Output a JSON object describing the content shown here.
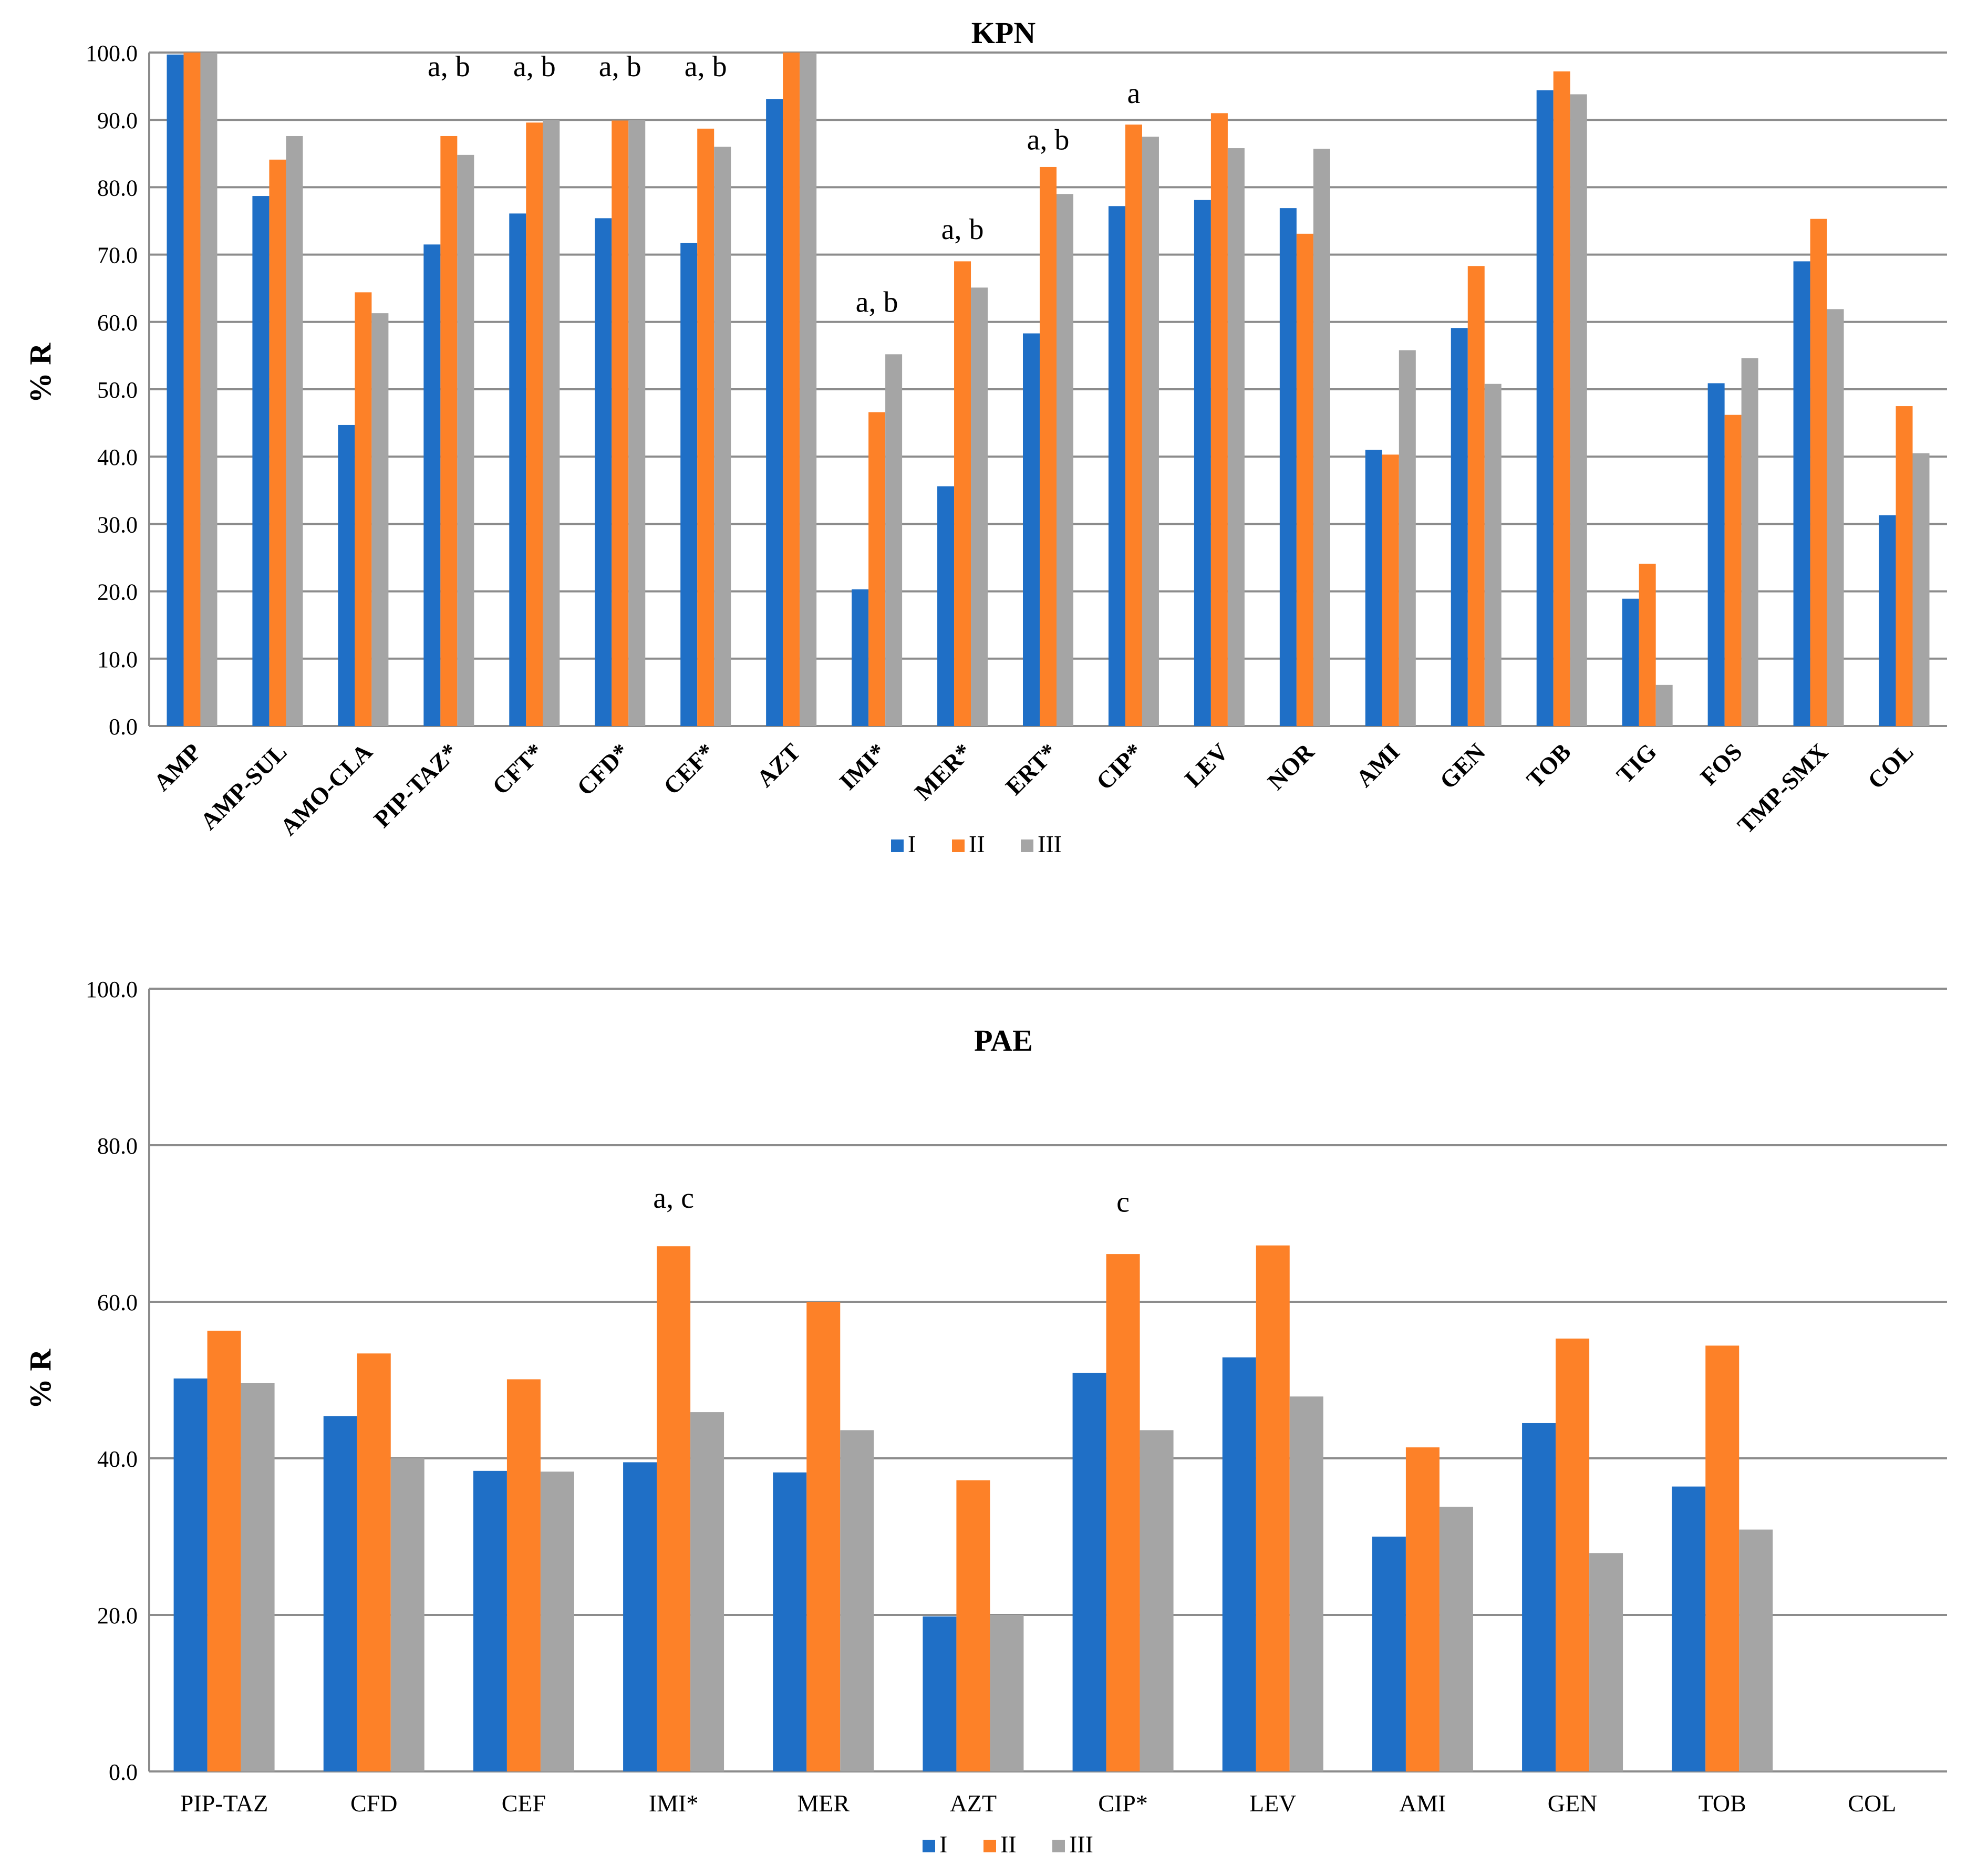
{
  "chart_data": [
    {
      "type": "bar",
      "title": "KPN",
      "xlabel": "",
      "ylabel": "% R",
      "ylim": [
        0,
        100
      ],
      "ytick_step": 10,
      "ytick_decimals": 1,
      "grid": true,
      "legend_position": "bottom-center",
      "categories": [
        "AMP",
        "AMP-SUL",
        "AMO-CLA",
        "PIP-TAZ*",
        "CFT*",
        "CFD*",
        "CEF*",
        "AZT",
        "IMI*",
        "MER*",
        "ERT*",
        "CIP*",
        "LEV",
        "NOR",
        "AMI",
        "GEN",
        "TOB",
        "TIG",
        "FOS",
        "TMP-SMX",
        "COL"
      ],
      "series": [
        {
          "name": "I",
          "color": "#1f6fc6",
          "values": [
            99.7,
            78.7,
            44.7,
            71.5,
            76.1,
            75.4,
            71.7,
            93.1,
            20.3,
            35.6,
            58.3,
            77.2,
            78.1,
            76.9,
            41.0,
            59.1,
            94.4,
            18.9,
            50.9,
            69.0,
            31.3
          ]
        },
        {
          "name": "II",
          "color": "#fd8128",
          "values": [
            100.0,
            84.1,
            64.4,
            87.6,
            89.6,
            89.9,
            88.7,
            100.0,
            46.6,
            69.0,
            83.0,
            89.3,
            91.0,
            73.1,
            40.3,
            68.3,
            97.2,
            24.1,
            46.2,
            75.3,
            47.5
          ]
        },
        {
          "name": "III",
          "color": "#a5a5a5",
          "values": [
            100.0,
            87.6,
            61.3,
            84.8,
            90.0,
            90.0,
            86.0,
            100.0,
            55.2,
            65.1,
            79.0,
            87.5,
            85.8,
            85.7,
            55.8,
            50.8,
            93.8,
            6.1,
            54.6,
            61.9,
            40.5
          ]
        }
      ],
      "annotations": [
        {
          "category": "PIP-TAZ*",
          "text": "a, b",
          "y": 96.5
        },
        {
          "category": "CFT*",
          "text": "a, b",
          "y": 96.5
        },
        {
          "category": "CFD*",
          "text": "a, b",
          "y": 96.5
        },
        {
          "category": "CEF*",
          "text": "a, b",
          "y": 96.5
        },
        {
          "category": "IMI*",
          "text": "a, b",
          "y": 61.5
        },
        {
          "category": "MER*",
          "text": "a, b",
          "y": 72.3
        },
        {
          "category": "ERT*",
          "text": "a, b",
          "y": 85.6
        },
        {
          "category": "CIP*",
          "text": "a",
          "y": 92.5
        }
      ]
    },
    {
      "type": "bar",
      "title": "PAE",
      "xlabel": "",
      "ylabel": "% R",
      "ylim": [
        0,
        100
      ],
      "ytick_step": 20,
      "ytick_decimals": 1,
      "grid": true,
      "legend_position": "bottom-center",
      "categories": [
        "PIP-TAZ",
        "CFD",
        "CEF",
        "IMI*",
        "MER",
        "AZT",
        "CIP*",
        "LEV",
        "AMI",
        "GEN",
        "TOB",
        "COL"
      ],
      "series": [
        {
          "name": "I",
          "color": "#1f6fc6",
          "values": [
            50.2,
            45.4,
            38.4,
            39.5,
            38.2,
            19.8,
            50.9,
            52.9,
            30.0,
            44.5,
            36.4,
            0
          ]
        },
        {
          "name": "II",
          "color": "#fd8128",
          "values": [
            56.3,
            53.4,
            50.1,
            67.1,
            60.0,
            37.2,
            66.1,
            67.2,
            41.4,
            55.3,
            54.4,
            0
          ]
        },
        {
          "name": "III",
          "color": "#a5a5a5",
          "values": [
            49.6,
            40.0,
            38.3,
            45.9,
            43.6,
            20.0,
            43.6,
            47.9,
            33.8,
            27.9,
            30.9,
            0
          ]
        }
      ],
      "annotations": [
        {
          "category": "IMI*",
          "text": "a, c",
          "y": 72.0
        },
        {
          "category": "CIP*",
          "text": "c",
          "y": 71.5
        }
      ]
    }
  ]
}
